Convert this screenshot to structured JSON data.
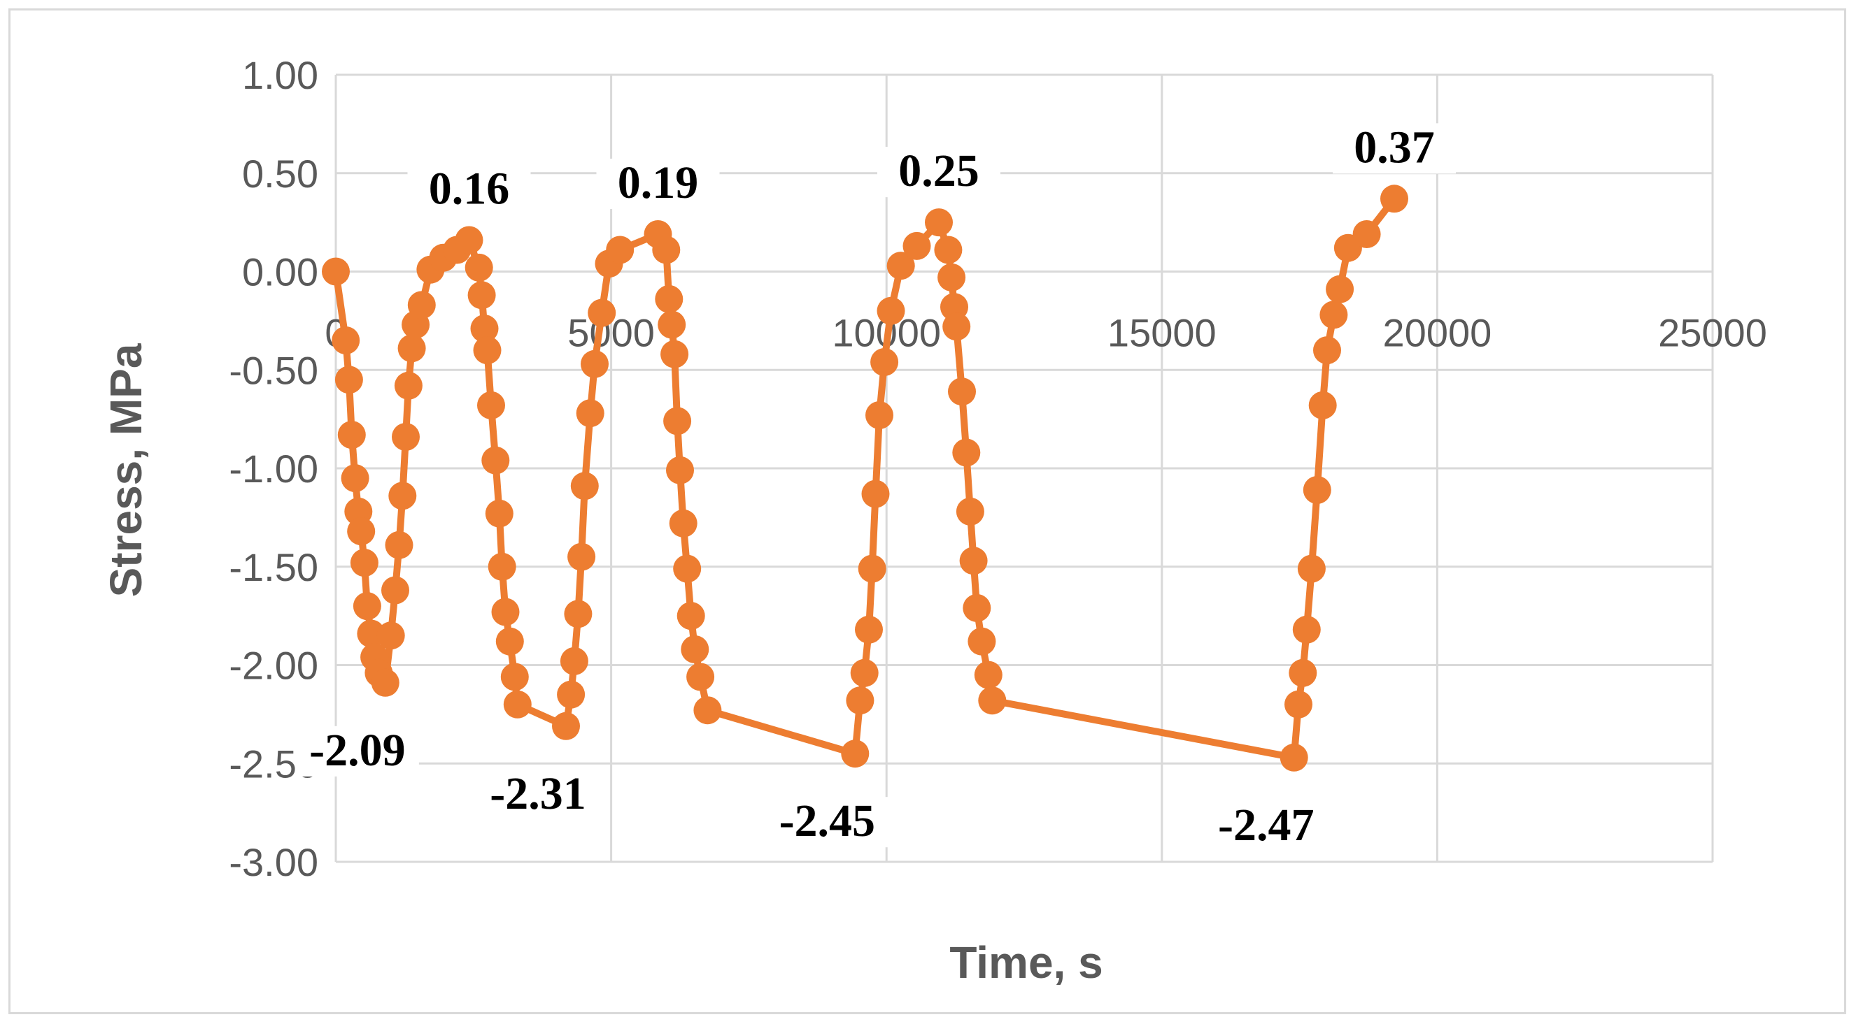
{
  "chart_data": {
    "type": "scatter",
    "title": "",
    "xlabel": "Time, s",
    "ylabel": "Stress, MPa",
    "xlim": [
      0,
      25000
    ],
    "ylim": [
      -3.0,
      1.0
    ],
    "x_ticks": [
      0,
      5000,
      10000,
      15000,
      20000,
      25000
    ],
    "x_tick_labels": [
      "0",
      "5000",
      "10000",
      "15000",
      "20000",
      "25000"
    ],
    "y_ticks": [
      1.0,
      0.5,
      0.0,
      -0.5,
      -1.0,
      -1.5,
      -2.0,
      -2.5,
      -3.0
    ],
    "y_tick_labels": [
      "1.00",
      "0.50",
      "0.00",
      "-0.50",
      "-1.00",
      "-1.50",
      "-2.00",
      "-2.50",
      "-3.00"
    ],
    "grid": true,
    "legend": "none",
    "line_color": "#ed7d31",
    "series": [
      {
        "points": [
          [
            0,
            0.0
          ],
          [
            180,
            -0.35
          ],
          [
            240,
            -0.55
          ],
          [
            290,
            -0.83
          ],
          [
            350,
            -1.05
          ],
          [
            410,
            -1.22
          ],
          [
            460,
            -1.32
          ],
          [
            520,
            -1.48
          ],
          [
            570,
            -1.7
          ],
          [
            640,
            -1.84
          ],
          [
            700,
            -1.96
          ],
          [
            780,
            -2.04
          ],
          [
            900,
            -2.09
          ],
          [
            1000,
            -1.85
          ],
          [
            1080,
            -1.62
          ],
          [
            1150,
            -1.39
          ],
          [
            1210,
            -1.14
          ],
          [
            1270,
            -0.84
          ],
          [
            1320,
            -0.58
          ],
          [
            1380,
            -0.39
          ],
          [
            1450,
            -0.27
          ],
          [
            1560,
            -0.17
          ],
          [
            1720,
            0.01
          ],
          [
            1950,
            0.07
          ],
          [
            2200,
            0.11
          ],
          [
            2420,
            0.16
          ],
          [
            2600,
            0.02
          ],
          [
            2650,
            -0.12
          ],
          [
            2700,
            -0.29
          ],
          [
            2750,
            -0.4
          ],
          [
            2820,
            -0.68
          ],
          [
            2900,
            -0.96
          ],
          [
            2970,
            -1.23
          ],
          [
            3020,
            -1.5
          ],
          [
            3080,
            -1.73
          ],
          [
            3160,
            -1.88
          ],
          [
            3250,
            -2.06
          ],
          [
            3300,
            -2.2
          ],
          [
            4180,
            -2.31
          ],
          [
            4270,
            -2.15
          ],
          [
            4330,
            -1.98
          ],
          [
            4400,
            -1.74
          ],
          [
            4460,
            -1.45
          ],
          [
            4520,
            -1.09
          ],
          [
            4620,
            -0.72
          ],
          [
            4700,
            -0.47
          ],
          [
            4830,
            -0.21
          ],
          [
            4960,
            0.04
          ],
          [
            5160,
            0.11
          ],
          [
            5850,
            0.19
          ],
          [
            6000,
            0.11
          ],
          [
            6050,
            -0.14
          ],
          [
            6100,
            -0.27
          ],
          [
            6150,
            -0.42
          ],
          [
            6200,
            -0.76
          ],
          [
            6250,
            -1.01
          ],
          [
            6310,
            -1.28
          ],
          [
            6380,
            -1.51
          ],
          [
            6450,
            -1.75
          ],
          [
            6520,
            -1.92
          ],
          [
            6620,
            -2.06
          ],
          [
            6750,
            -2.23
          ],
          [
            9430,
            -2.45
          ],
          [
            9520,
            -2.18
          ],
          [
            9600,
            -2.04
          ],
          [
            9680,
            -1.82
          ],
          [
            9740,
            -1.51
          ],
          [
            9800,
            -1.13
          ],
          [
            9870,
            -0.73
          ],
          [
            9960,
            -0.46
          ],
          [
            10080,
            -0.2
          ],
          [
            10260,
            0.03
          ],
          [
            10550,
            0.13
          ],
          [
            10950,
            0.25
          ],
          [
            11120,
            0.11
          ],
          [
            11180,
            -0.03
          ],
          [
            11230,
            -0.18
          ],
          [
            11270,
            -0.28
          ],
          [
            11370,
            -0.61
          ],
          [
            11450,
            -0.92
          ],
          [
            11520,
            -1.22
          ],
          [
            11580,
            -1.47
          ],
          [
            11640,
            -1.71
          ],
          [
            11730,
            -1.88
          ],
          [
            11850,
            -2.05
          ],
          [
            11920,
            -2.18
          ],
          [
            17400,
            -2.47
          ],
          [
            17480,
            -2.2
          ],
          [
            17560,
            -2.04
          ],
          [
            17630,
            -1.82
          ],
          [
            17720,
            -1.51
          ],
          [
            17820,
            -1.11
          ],
          [
            17920,
            -0.68
          ],
          [
            18000,
            -0.4
          ],
          [
            18120,
            -0.22
          ],
          [
            18230,
            -0.09
          ],
          [
            18380,
            0.12
          ],
          [
            18720,
            0.19
          ],
          [
            19220,
            0.37
          ]
        ]
      }
    ],
    "annotations": [
      {
        "text": "0.16",
        "x": 2420,
        "y": 0.16
      },
      {
        "text": "0.19",
        "x": 5850,
        "y": 0.19
      },
      {
        "text": "0.25",
        "x": 10950,
        "y": 0.25
      },
      {
        "text": "0.37",
        "x": 19220,
        "y": 0.37
      },
      {
        "text": "-2.09",
        "x": 900,
        "y": -2.09
      },
      {
        "text": "-2.31",
        "x": 4180,
        "y": -2.31
      },
      {
        "text": "-2.45",
        "x": 9430,
        "y": -2.45
      },
      {
        "text": "-2.47",
        "x": 17400,
        "y": -2.47
      }
    ]
  }
}
